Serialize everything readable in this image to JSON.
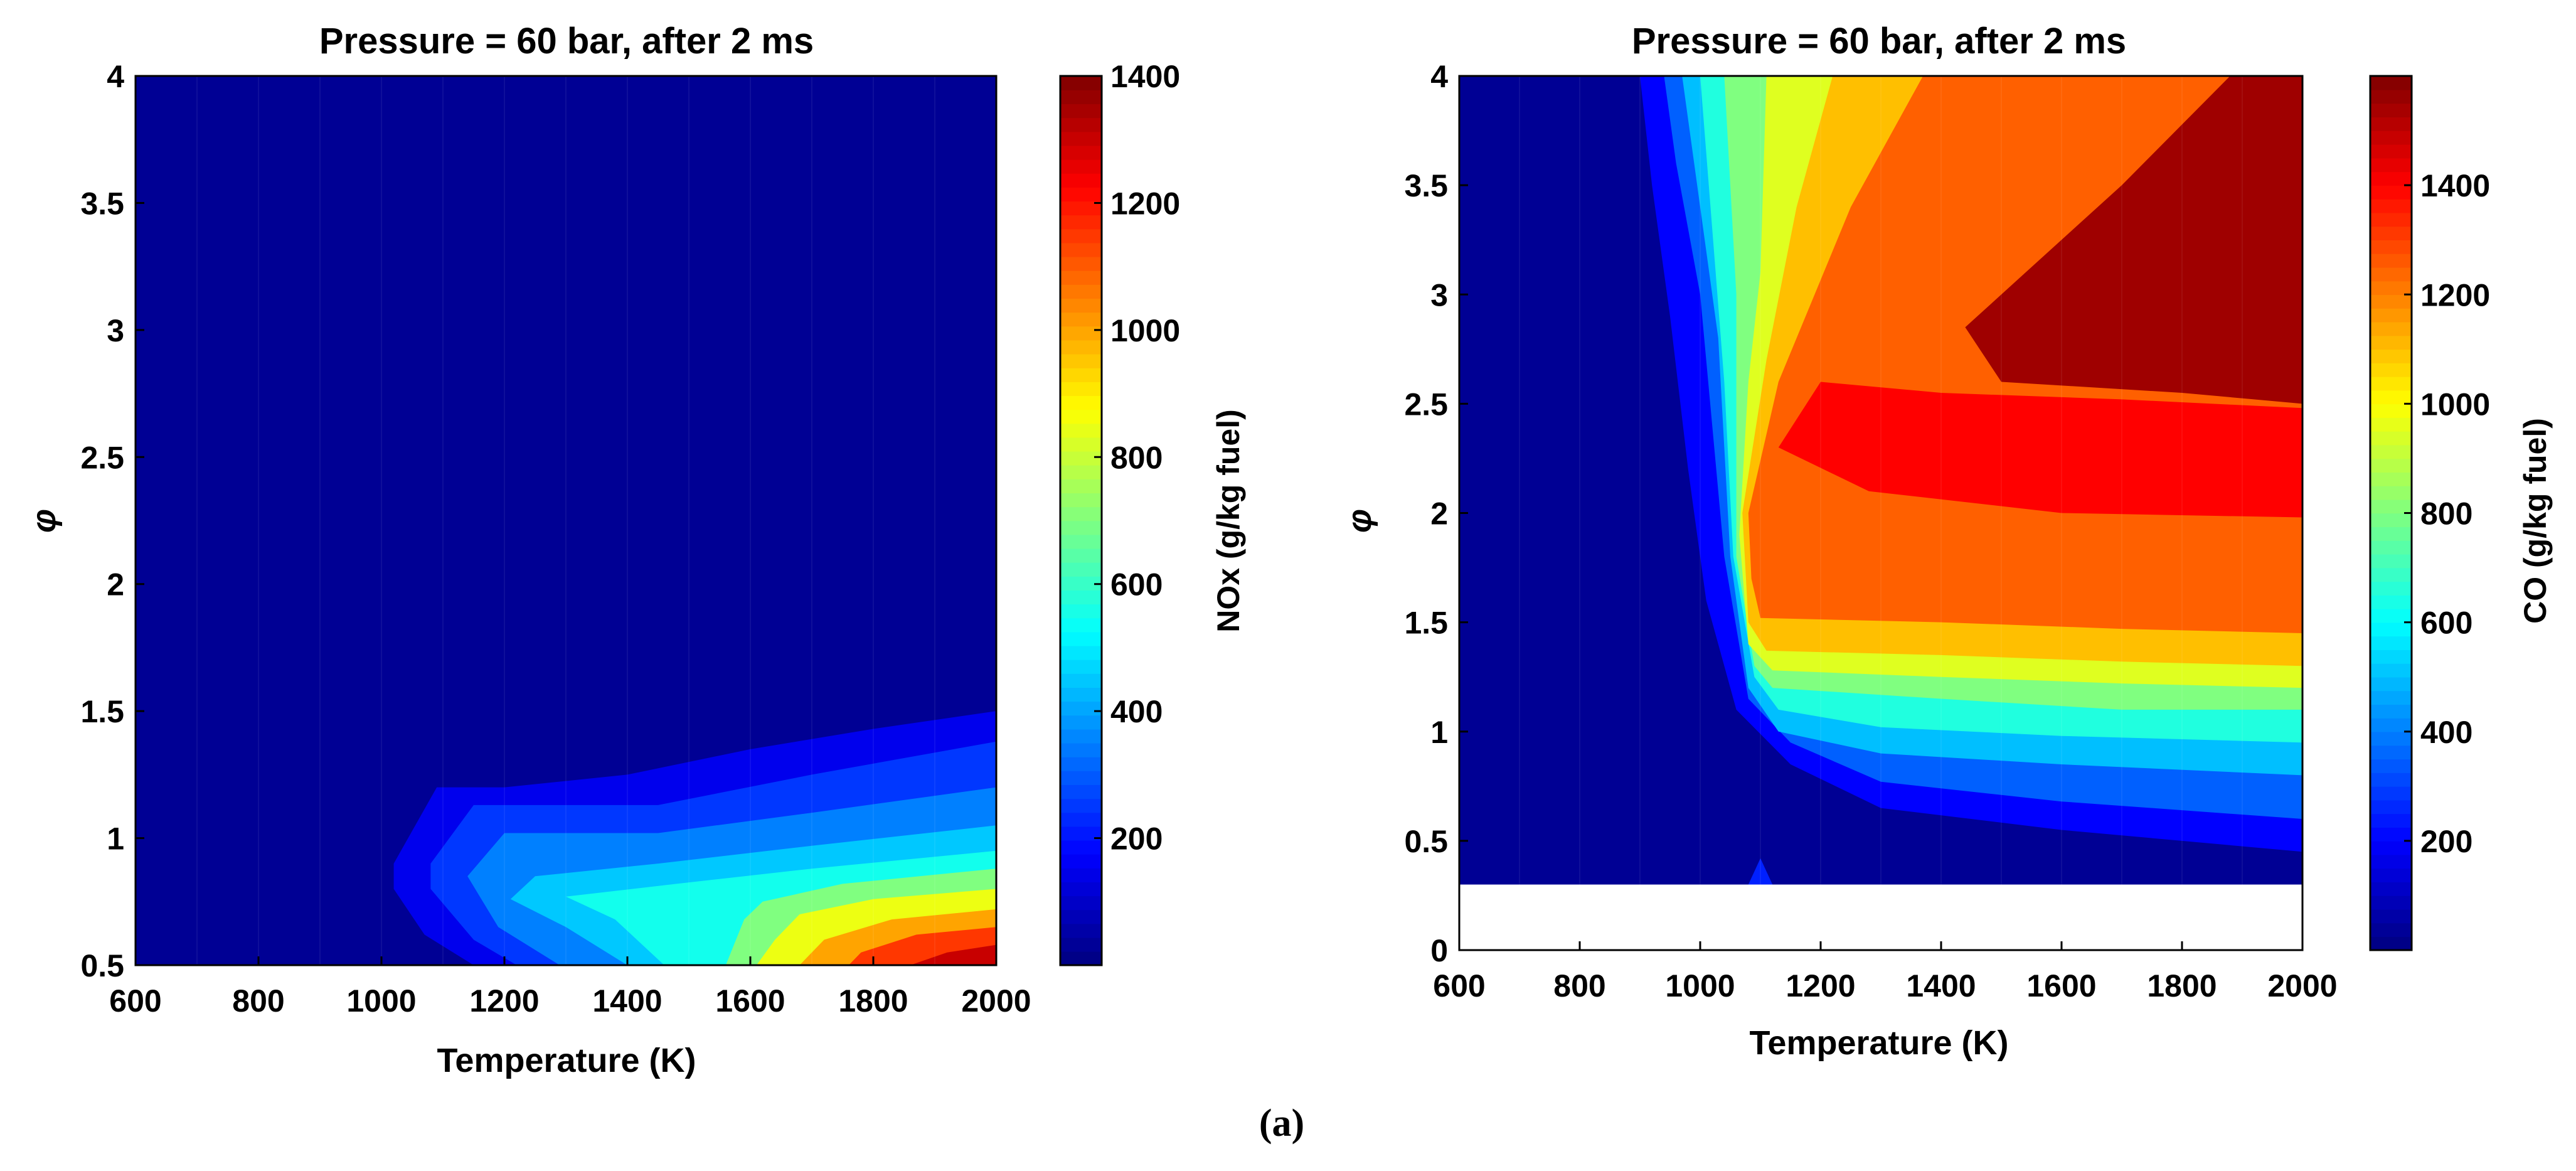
{
  "chart_data": [
    {
      "type": "contour",
      "title": "Pressure = 60 bar, after 2 ms",
      "xlabel": "Temperature (K)",
      "ylabel": "φ",
      "colorbar_label": "NOx (g/kg fuel)",
      "xlim": [
        600,
        2000
      ],
      "ylim": [
        0.5,
        4
      ],
      "clim": [
        0,
        1400
      ],
      "x_ticks": [
        "600",
        "800",
        "1000",
        "1200",
        "1400",
        "1600",
        "1800",
        "2000"
      ],
      "y_ticks": [
        "0.5",
        "1",
        "1.5",
        "2",
        "2.5",
        "3",
        "3.5",
        "4"
      ],
      "colorbar_ticks": [
        "200",
        "400",
        "600",
        "800",
        "1000",
        "1200",
        "1400"
      ],
      "regions": [
        {
          "level": 150,
          "polygon": [
            [
              2000,
              1.5
            ],
            [
              1800,
              1.43
            ],
            [
              1600,
              1.35
            ],
            [
              1400,
              1.25
            ],
            [
              1200,
              1.2
            ],
            [
              1090,
              1.2
            ],
            [
              1020,
              0.9
            ],
            [
              1020,
              0.8
            ],
            [
              1070,
              0.62
            ],
            [
              1150,
              0.5
            ],
            [
              2000,
              0.5
            ]
          ]
        },
        {
          "level": 250,
          "polygon": [
            [
              2000,
              1.38
            ],
            [
              1700,
              1.25
            ],
            [
              1450,
              1.13
            ],
            [
              1150,
              1.13
            ],
            [
              1080,
              0.9
            ],
            [
              1080,
              0.8
            ],
            [
              1150,
              0.6
            ],
            [
              1220,
              0.5
            ],
            [
              2000,
              0.5
            ]
          ]
        },
        {
          "level": 350,
          "polygon": [
            [
              2000,
              1.2
            ],
            [
              1700,
              1.1
            ],
            [
              1450,
              1.02
            ],
            [
              1200,
              1.02
            ],
            [
              1140,
              0.85
            ],
            [
              1190,
              0.65
            ],
            [
              1290,
              0.5
            ],
            [
              2000,
              0.5
            ]
          ]
        },
        {
          "level": 450,
          "polygon": [
            [
              2000,
              1.05
            ],
            [
              1700,
              0.97
            ],
            [
              1450,
              0.9
            ],
            [
              1250,
              0.85
            ],
            [
              1210,
              0.76
            ],
            [
              1300,
              0.65
            ],
            [
              1400,
              0.5
            ],
            [
              2000,
              0.5
            ]
          ]
        },
        {
          "level": 550,
          "polygon": [
            [
              2000,
              0.95
            ],
            [
              1700,
              0.88
            ],
            [
              1480,
              0.82
            ],
            [
              1300,
              0.77
            ],
            [
              1380,
              0.68
            ],
            [
              1460,
              0.5
            ],
            [
              2000,
              0.5
            ]
          ]
        },
        {
          "level": 700,
          "polygon": [
            [
              2000,
              0.88
            ],
            [
              1750,
              0.82
            ],
            [
              1620,
              0.75
            ],
            [
              1590,
              0.68
            ],
            [
              1560,
              0.5
            ],
            [
              2000,
              0.5
            ]
          ]
        },
        {
          "level": 850,
          "polygon": [
            [
              2000,
              0.8
            ],
            [
              1800,
              0.76
            ],
            [
              1680,
              0.7
            ],
            [
              1640,
              0.6
            ],
            [
              1610,
              0.5
            ],
            [
              2000,
              0.5
            ]
          ]
        },
        {
          "level": 1000,
          "polygon": [
            [
              2000,
              0.72
            ],
            [
              1830,
              0.68
            ],
            [
              1720,
              0.6
            ],
            [
              1680,
              0.5
            ],
            [
              2000,
              0.5
            ]
          ]
        },
        {
          "level": 1150,
          "polygon": [
            [
              2000,
              0.65
            ],
            [
              1870,
              0.62
            ],
            [
              1780,
              0.55
            ],
            [
              1760,
              0.5
            ],
            [
              2000,
              0.5
            ]
          ]
        },
        {
          "level": 1300,
          "polygon": [
            [
              2000,
              0.58
            ],
            [
              1920,
              0.55
            ],
            [
              1860,
              0.5
            ],
            [
              2000,
              0.5
            ]
          ]
        }
      ]
    },
    {
      "type": "contour",
      "title": "Pressure = 60 bar, after 2 ms",
      "xlabel": "Temperature (K)",
      "ylabel": "φ",
      "colorbar_label": "CO (g/kg fuel)",
      "xlim": [
        600,
        2000
      ],
      "ylim": [
        0,
        4
      ],
      "data_ylim": [
        0.3,
        4
      ],
      "clim": [
        0,
        1600
      ],
      "x_ticks": [
        "600",
        "800",
        "1000",
        "1200",
        "1400",
        "1600",
        "1800",
        "2000"
      ],
      "y_ticks": [
        "0",
        "0.5",
        "1",
        "1.5",
        "2",
        "2.5",
        "3",
        "3.5",
        "4"
      ],
      "colorbar_ticks": [
        "200",
        "400",
        "600",
        "800",
        "1000",
        "1200",
        "1400"
      ],
      "regions": [
        {
          "level": 200,
          "polygon": [
            [
              900,
              4
            ],
            [
              2000,
              4
            ],
            [
              2000,
              0.45
            ],
            [
              1600,
              0.55
            ],
            [
              1300,
              0.65
            ],
            [
              1150,
              0.85
            ],
            [
              1060,
              1.1
            ],
            [
              1010,
              1.6
            ],
            [
              980,
              2.2
            ],
            [
              950,
              2.9
            ],
            [
              920,
              3.5
            ]
          ]
        },
        {
          "level": 350,
          "polygon": [
            [
              940,
              4
            ],
            [
              2000,
              4
            ],
            [
              2000,
              0.6
            ],
            [
              1600,
              0.68
            ],
            [
              1300,
              0.77
            ],
            [
              1150,
              0.95
            ],
            [
              1080,
              1.15
            ],
            [
              1040,
              1.8
            ],
            [
              1000,
              3.0
            ],
            [
              960,
              3.6
            ]
          ]
        },
        {
          "level": 500,
          "polygon": [
            [
              970,
              4
            ],
            [
              2000,
              4
            ],
            [
              2000,
              0.8
            ],
            [
              1600,
              0.85
            ],
            [
              1300,
              0.9
            ],
            [
              1130,
              1.0
            ],
            [
              1080,
              1.2
            ],
            [
              1050,
              1.8
            ],
            [
              1030,
              2.8
            ],
            [
              990,
              3.6
            ]
          ]
        },
        {
          "level": 650,
          "polygon": [
            [
              1000,
              4
            ],
            [
              2000,
              4
            ],
            [
              2000,
              0.95
            ],
            [
              1600,
              0.98
            ],
            [
              1300,
              1.02
            ],
            [
              1130,
              1.1
            ],
            [
              1090,
              1.25
            ],
            [
              1055,
              1.8
            ],
            [
              1040,
              2.6
            ],
            [
              1020,
              3.3
            ]
          ]
        },
        {
          "level": 800,
          "polygon": [
            [
              1040,
              4
            ],
            [
              2000,
              4
            ],
            [
              2000,
              1.1
            ],
            [
              1700,
              1.1
            ],
            [
              1400,
              1.15
            ],
            [
              1120,
              1.2
            ],
            [
              1090,
              1.3
            ],
            [
              1060,
              1.8
            ],
            [
              1060,
              2.5
            ],
            [
              1060,
              3.0
            ]
          ]
        },
        {
          "level": 950,
          "polygon": [
            [
              1110,
              4
            ],
            [
              2000,
              4
            ],
            [
              2000,
              1.2
            ],
            [
              1700,
              1.22
            ],
            [
              1400,
              1.25
            ],
            [
              1120,
              1.28
            ],
            [
              1080,
              1.4
            ],
            [
              1065,
              1.9
            ],
            [
              1080,
              2.6
            ],
            [
              1100,
              3.1
            ]
          ]
        },
        {
          "level": 1100,
          "polygon": [
            [
              1220,
              4
            ],
            [
              2000,
              4
            ],
            [
              2000,
              1.3
            ],
            [
              1700,
              1.32
            ],
            [
              1400,
              1.35
            ],
            [
              1110,
              1.37
            ],
            [
              1080,
              1.5
            ],
            [
              1070,
              2.0
            ],
            [
              1110,
              2.7
            ],
            [
              1160,
              3.4
            ]
          ]
        },
        {
          "level": 1250,
          "polygon": [
            [
              1370,
              4
            ],
            [
              2000,
              4
            ],
            [
              2000,
              1.45
            ],
            [
              1700,
              1.47
            ],
            [
              1400,
              1.5
            ],
            [
              1100,
              1.52
            ],
            [
              1085,
              1.7
            ],
            [
              1080,
              2.0
            ],
            [
              1130,
              2.6
            ],
            [
              1250,
              3.4
            ]
          ]
        },
        {
          "level": 1400,
          "polygon": [
            [
              2000,
              2.48
            ],
            [
              1700,
              2.52
            ],
            [
              1400,
              2.55
            ],
            [
              1200,
              2.6
            ],
            [
              1130,
              2.3
            ],
            [
              1280,
              2.1
            ],
            [
              1600,
              2.0
            ],
            [
              2000,
              1.98
            ]
          ]
        },
        {
          "level": 1550,
          "polygon": [
            [
              1880,
              4
            ],
            [
              2000,
              4
            ],
            [
              2000,
              2.5
            ],
            [
              1800,
              2.55
            ],
            [
              1500,
              2.6
            ],
            [
              1440,
              2.85
            ],
            [
              1540,
              3.1
            ],
            [
              1700,
              3.5
            ]
          ]
        }
      ],
      "spot": {
        "level": 250,
        "polygon": [
          [
            1080,
            0.3
          ],
          [
            1100,
            0.42
          ],
          [
            1120,
            0.3
          ]
        ]
      }
    }
  ],
  "caption": "(a)"
}
